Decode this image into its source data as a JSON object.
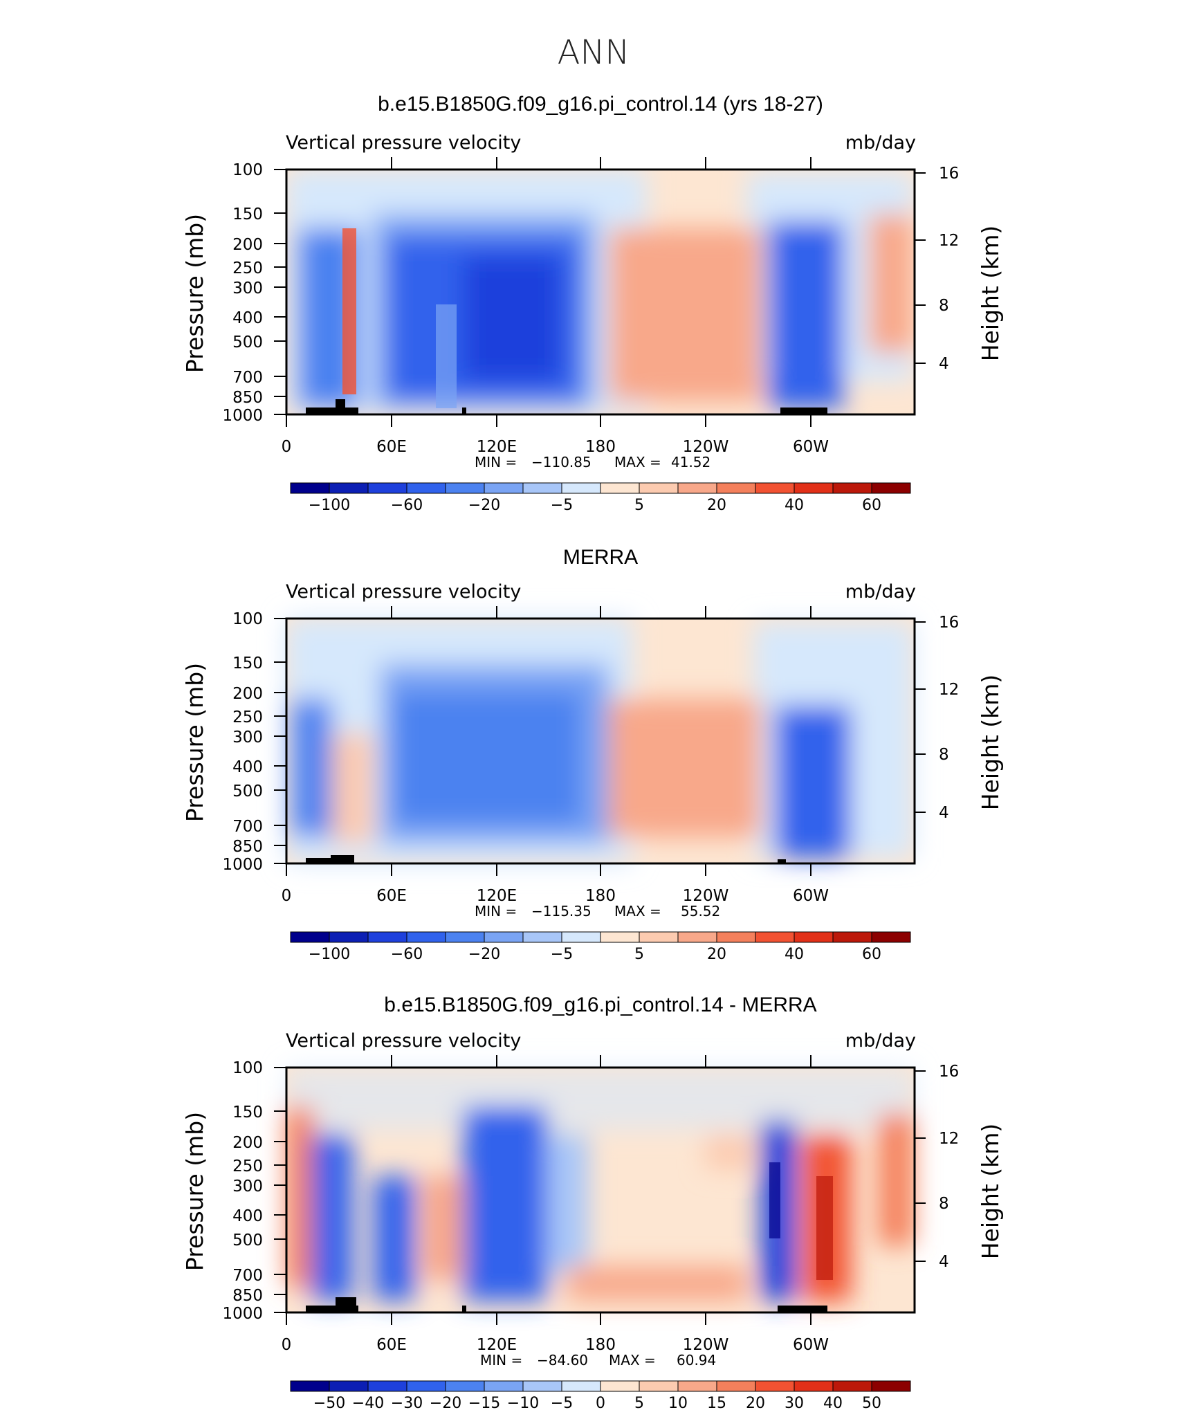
{
  "page_title": "ANN",
  "colors": {
    "abs_levels": [
      "#00008c",
      "#0c1fb4",
      "#1e40dc",
      "#3062ec",
      "#4c82f0",
      "#7aa4f4",
      "#a8c6f8",
      "#d6e8fc",
      "#fde6d2",
      "#fccbb0",
      "#f8a88a",
      "#f4805c",
      "#f25232",
      "#e23018",
      "#bc180a",
      "#8c0000"
    ],
    "diff_levels": [
      "#00008c",
      "#0c1fb4",
      "#1e40dc",
      "#3062ec",
      "#4c82f0",
      "#7aa4f4",
      "#a8c6f8",
      "#d6e8fc",
      "#fde6d2",
      "#fccbb0",
      "#f8a88a",
      "#f4805c",
      "#f25232",
      "#e23018",
      "#bc180a",
      "#8c0000"
    ]
  },
  "chart_data": [
    {
      "type": "heatmap",
      "title": "b.e15.B1850G.f09_g16.pi_control.14 (yrs 18-27)",
      "subtitle_left": "Vertical pressure velocity",
      "subtitle_right": "mb/day",
      "ylabel": "Pressure (mb)",
      "ylabel_right": "Height (km)",
      "y_ticks": [
        "100",
        "150",
        "200",
        "250",
        "300",
        "400",
        "500",
        "700",
        "850",
        "1000"
      ],
      "y_ticks_right": [
        "16",
        "12",
        "8",
        "4"
      ],
      "x_ticks": [
        "0",
        "60E",
        "120E",
        "180",
        "120W",
        "60W"
      ],
      "min_label": "MIN =",
      "min_value": "−110.85",
      "max_label": "MAX =",
      "max_value": "41.52",
      "colorbar_labels": [
        "−100",
        "−60",
        "−20",
        "−5",
        "5",
        "20",
        "40",
        "60"
      ],
      "cells": [
        {
          "lon": 15,
          "p": 300,
          "value": -60
        },
        {
          "lon": 30,
          "p": 500,
          "value": -40
        },
        {
          "lon": 37,
          "p": 350,
          "value": 40
        },
        {
          "lon": 90,
          "p": 350,
          "value": -40
        },
        {
          "lon": 115,
          "p": 350,
          "value": -60
        },
        {
          "lon": 135,
          "p": 400,
          "value": -60
        },
        {
          "lon": 210,
          "p": 400,
          "value": 20
        },
        {
          "lon": 280,
          "p": 400,
          "value": -60
        },
        {
          "lon": 300,
          "p": 300,
          "value": -40
        },
        {
          "lon": 345,
          "p": 350,
          "value": 20
        }
      ]
    },
    {
      "type": "heatmap",
      "title": "MERRA",
      "subtitle_left": "Vertical pressure velocity",
      "subtitle_right": "mb/day",
      "ylabel": "Pressure (mb)",
      "ylabel_right": "Height (km)",
      "y_ticks": [
        "100",
        "150",
        "200",
        "250",
        "300",
        "400",
        "500",
        "700",
        "850",
        "1000"
      ],
      "y_ticks_right": [
        "16",
        "12",
        "8",
        "4"
      ],
      "x_ticks": [
        "0",
        "60E",
        "120E",
        "180",
        "120W",
        "60W"
      ],
      "min_label": "MIN =",
      "min_value": "−115.35",
      "max_label": "MAX =",
      "max_value": "55.52",
      "colorbar_labels": [
        "−100",
        "−60",
        "−20",
        "−5",
        "5",
        "20",
        "40",
        "60"
      ],
      "cells": [
        {
          "lon": 15,
          "p": 300,
          "value": -40
        },
        {
          "lon": 35,
          "p": 500,
          "value": 20
        },
        {
          "lon": 100,
          "p": 400,
          "value": -40
        },
        {
          "lon": 135,
          "p": 400,
          "value": -40
        },
        {
          "lon": 210,
          "p": 400,
          "value": 20
        },
        {
          "lon": 290,
          "p": 500,
          "value": -40
        }
      ]
    },
    {
      "type": "heatmap",
      "title": "b.e15.B1850G.f09_g16.pi_control.14 - MERRA",
      "subtitle_left": "Vertical pressure velocity",
      "subtitle_right": "mb/day",
      "ylabel": "Pressure (mb)",
      "ylabel_right": "Height (km)",
      "y_ticks": [
        "100",
        "150",
        "200",
        "250",
        "300",
        "400",
        "500",
        "700",
        "850",
        "1000"
      ],
      "y_ticks_right": [
        "16",
        "12",
        "8",
        "4"
      ],
      "x_ticks": [
        "0",
        "60E",
        "120E",
        "180",
        "120W",
        "60W"
      ],
      "min_label": "MIN =",
      "min_value": "−84.60",
      "max_label": "MAX =",
      "max_value": "60.94",
      "colorbar_labels": [
        "−50",
        "−40",
        "−30",
        "−20",
        "−15",
        "−10",
        "−5",
        "0",
        "5",
        "10",
        "15",
        "20",
        "30",
        "40",
        "50"
      ],
      "cells": [
        {
          "lon": 5,
          "p": 300,
          "value": 20
        },
        {
          "lon": 20,
          "p": 400,
          "value": -30
        },
        {
          "lon": 60,
          "p": 500,
          "value": -20
        },
        {
          "lon": 90,
          "p": 400,
          "value": 15
        },
        {
          "lon": 118,
          "p": 350,
          "value": -30
        },
        {
          "lon": 280,
          "p": 400,
          "value": -40
        },
        {
          "lon": 305,
          "p": 450,
          "value": 30
        },
        {
          "lon": 345,
          "p": 300,
          "value": 15
        }
      ]
    }
  ]
}
